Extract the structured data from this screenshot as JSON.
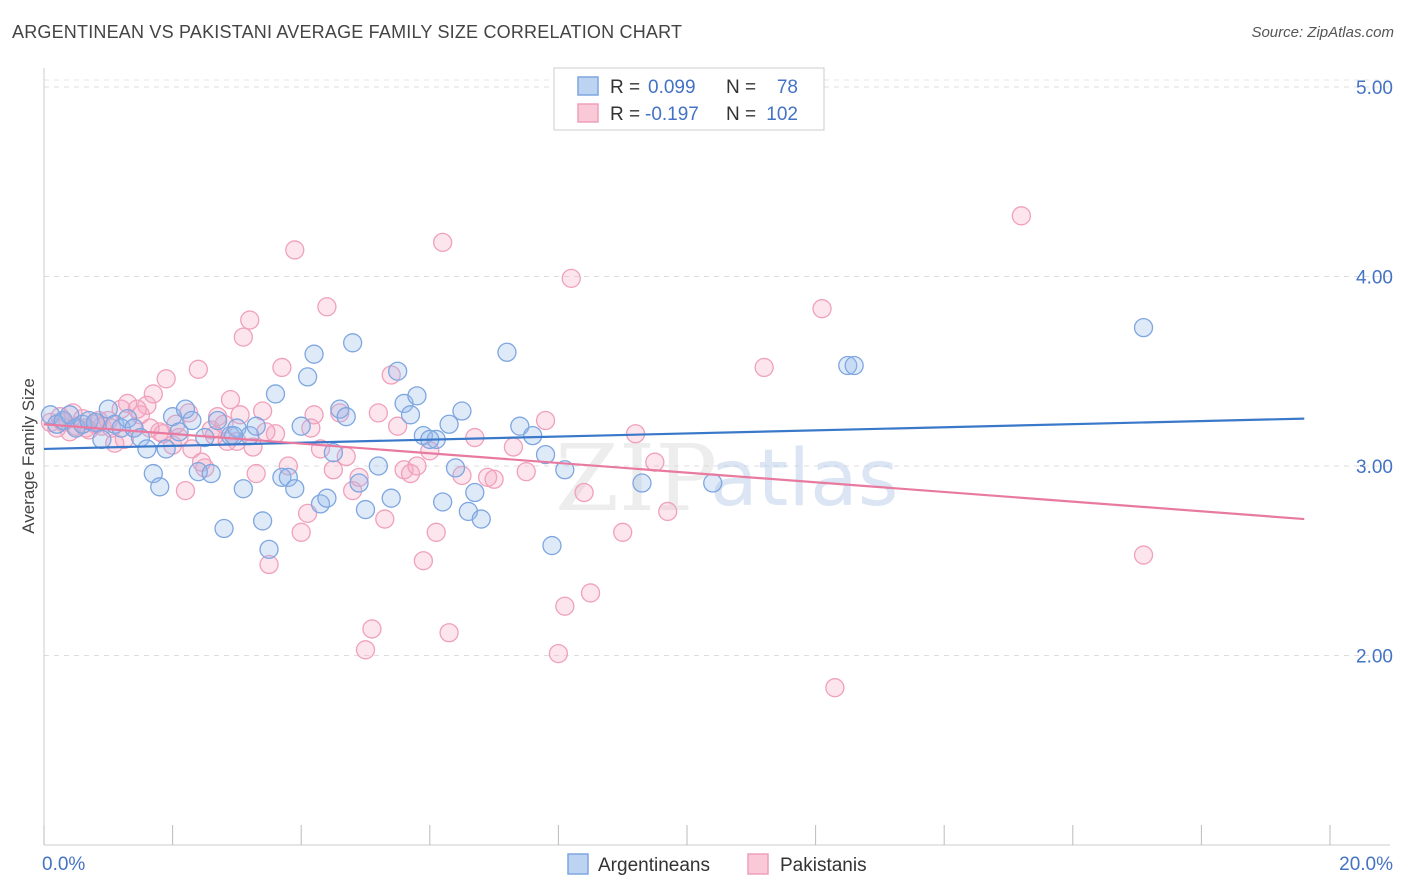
{
  "header": {
    "title": "ARGENTINEAN VS PAKISTANI AVERAGE FAMILY SIZE CORRELATION CHART",
    "source": "Source: ZipAtlas.com"
  },
  "legend": {
    "rows": [
      {
        "r_label": "R =",
        "r_value": "0.099",
        "n_label": "N =",
        "n_value": "78"
      },
      {
        "r_label": "R =",
        "r_value": "-0.197",
        "n_label": "N =",
        "n_value": "102"
      }
    ]
  },
  "watermark": {
    "zip": "ZIP",
    "atlas": "atlas"
  },
  "colors": {
    "argentineans": "#7ea6e0",
    "pakistanis": "#f0a0bc",
    "blue_line": "#3a78c9",
    "pink_line": "#e87aa0"
  },
  "chart_data": {
    "type": "scatter",
    "title": "ARGENTINEAN VS PAKISTANI AVERAGE FAMILY SIZE CORRELATION CHART",
    "ylabel": "Average Family Size",
    "xlabel": "",
    "xlim": [
      0,
      20
    ],
    "ylim": [
      1.0,
      5.1
    ],
    "x_tick_labels": [
      "0.0%",
      "20.0%"
    ],
    "y_ticks": [
      2.0,
      3.0,
      4.0,
      5.0
    ],
    "y_tick_labels": [
      "2.00",
      "3.00",
      "4.00",
      "5.00"
    ],
    "grid": true,
    "legend_position": "top-center",
    "series": [
      {
        "name": "Argentineans",
        "trend": {
          "x": [
            0,
            19.6
          ],
          "y": [
            3.09,
            3.25
          ]
        },
        "points": [
          [
            0.1,
            3.27
          ],
          [
            0.2,
            3.22
          ],
          [
            0.3,
            3.24
          ],
          [
            0.4,
            3.27
          ],
          [
            0.5,
            3.2
          ],
          [
            0.6,
            3.22
          ],
          [
            0.7,
            3.24
          ],
          [
            0.8,
            3.23
          ],
          [
            0.9,
            3.14
          ],
          [
            1.0,
            3.3
          ],
          [
            1.1,
            3.22
          ],
          [
            1.2,
            3.2
          ],
          [
            1.3,
            3.25
          ],
          [
            1.4,
            3.2
          ],
          [
            1.5,
            3.15
          ],
          [
            1.6,
            3.09
          ],
          [
            1.7,
            2.96
          ],
          [
            1.8,
            2.89
          ],
          [
            1.9,
            3.09
          ],
          [
            2.0,
            3.26
          ],
          [
            2.1,
            3.18
          ],
          [
            2.2,
            3.3
          ],
          [
            2.3,
            3.24
          ],
          [
            2.4,
            2.97
          ],
          [
            2.5,
            3.15
          ],
          [
            2.6,
            2.96
          ],
          [
            2.7,
            3.24
          ],
          [
            2.8,
            2.67
          ],
          [
            2.9,
            3.16
          ],
          [
            3.0,
            3.2
          ],
          [
            3.1,
            2.88
          ],
          [
            3.2,
            3.16
          ],
          [
            3.3,
            3.21
          ],
          [
            3.4,
            2.71
          ],
          [
            3.5,
            2.56
          ],
          [
            3.6,
            3.38
          ],
          [
            3.7,
            2.94
          ],
          [
            3.8,
            2.94
          ],
          [
            3.9,
            2.88
          ],
          [
            4.0,
            3.21
          ],
          [
            4.1,
            3.47
          ],
          [
            4.2,
            3.59
          ],
          [
            4.3,
            2.8
          ],
          [
            4.4,
            2.83
          ],
          [
            4.5,
            3.07
          ],
          [
            4.6,
            3.3
          ],
          [
            4.7,
            3.26
          ],
          [
            4.8,
            3.65
          ],
          [
            4.9,
            2.91
          ],
          [
            5.0,
            2.77
          ],
          [
            5.2,
            3.0
          ],
          [
            5.4,
            2.83
          ],
          [
            5.5,
            3.5
          ],
          [
            5.6,
            3.33
          ],
          [
            5.7,
            3.27
          ],
          [
            5.8,
            3.37
          ],
          [
            5.9,
            3.16
          ],
          [
            6.1,
            3.14
          ],
          [
            6.2,
            2.81
          ],
          [
            6.3,
            3.22
          ],
          [
            6.4,
            2.99
          ],
          [
            6.5,
            3.29
          ],
          [
            6.6,
            2.76
          ],
          [
            6.7,
            2.86
          ],
          [
            6.8,
            2.72
          ],
          [
            7.2,
            3.6
          ],
          [
            7.4,
            3.21
          ],
          [
            7.6,
            3.16
          ],
          [
            7.8,
            3.06
          ],
          [
            7.9,
            2.58
          ],
          [
            8.1,
            2.98
          ],
          [
            9.3,
            2.91
          ],
          [
            10.4,
            2.91
          ],
          [
            12.5,
            3.53
          ],
          [
            12.6,
            3.53
          ],
          [
            17.1,
            3.73
          ],
          [
            6.0,
            3.14
          ],
          [
            2.95,
            3.16
          ]
        ]
      },
      {
        "name": "Pakistanis",
        "trend": {
          "x": [
            0,
            19.6
          ],
          "y": [
            3.22,
            2.72
          ]
        },
        "points": [
          [
            0.1,
            3.23
          ],
          [
            0.2,
            3.2
          ],
          [
            0.3,
            3.23
          ],
          [
            0.4,
            3.18
          ],
          [
            0.5,
            3.21
          ],
          [
            0.6,
            3.25
          ],
          [
            0.7,
            3.19
          ],
          [
            0.8,
            3.22
          ],
          [
            0.9,
            3.21
          ],
          [
            1.0,
            3.24
          ],
          [
            1.1,
            3.12
          ],
          [
            1.2,
            3.3
          ],
          [
            1.3,
            3.33
          ],
          [
            1.4,
            3.2
          ],
          [
            1.5,
            3.27
          ],
          [
            1.6,
            3.32
          ],
          [
            1.7,
            3.38
          ],
          [
            1.8,
            3.18
          ],
          [
            1.9,
            3.46
          ],
          [
            2.0,
            3.11
          ],
          [
            2.1,
            3.15
          ],
          [
            2.2,
            2.87
          ],
          [
            2.3,
            3.09
          ],
          [
            2.4,
            3.51
          ],
          [
            2.5,
            2.99
          ],
          [
            2.6,
            3.19
          ],
          [
            2.7,
            3.26
          ],
          [
            2.8,
            3.22
          ],
          [
            2.9,
            3.35
          ],
          [
            3.0,
            3.13
          ],
          [
            3.1,
            3.68
          ],
          [
            3.2,
            3.77
          ],
          [
            3.3,
            2.96
          ],
          [
            3.4,
            3.29
          ],
          [
            3.5,
            2.48
          ],
          [
            3.6,
            3.17
          ],
          [
            3.7,
            3.52
          ],
          [
            3.8,
            3.0
          ],
          [
            3.9,
            4.14
          ],
          [
            4.0,
            2.65
          ],
          [
            4.1,
            2.75
          ],
          [
            4.2,
            3.27
          ],
          [
            4.3,
            3.09
          ],
          [
            4.4,
            3.84
          ],
          [
            4.5,
            2.98
          ],
          [
            4.6,
            3.28
          ],
          [
            4.7,
            3.05
          ],
          [
            4.8,
            2.87
          ],
          [
            4.9,
            2.94
          ],
          [
            5.0,
            2.03
          ],
          [
            5.1,
            2.14
          ],
          [
            5.2,
            3.28
          ],
          [
            5.3,
            2.72
          ],
          [
            5.4,
            3.48
          ],
          [
            5.5,
            3.21
          ],
          [
            5.6,
            2.98
          ],
          [
            5.7,
            2.96
          ],
          [
            5.8,
            3.0
          ],
          [
            5.9,
            2.5
          ],
          [
            6.0,
            3.08
          ],
          [
            6.1,
            2.65
          ],
          [
            6.2,
            4.18
          ],
          [
            6.3,
            2.12
          ],
          [
            6.5,
            2.95
          ],
          [
            6.7,
            3.15
          ],
          [
            6.9,
            2.94
          ],
          [
            7.0,
            2.93
          ],
          [
            7.3,
            3.1
          ],
          [
            7.5,
            2.97
          ],
          [
            7.8,
            3.24
          ],
          [
            8.0,
            2.01
          ],
          [
            8.1,
            2.26
          ],
          [
            8.2,
            3.99
          ],
          [
            8.4,
            2.86
          ],
          [
            8.5,
            2.33
          ],
          [
            9.0,
            2.65
          ],
          [
            9.2,
            3.17
          ],
          [
            9.5,
            3.02
          ],
          [
            9.7,
            2.76
          ],
          [
            11.2,
            3.52
          ],
          [
            12.1,
            3.83
          ],
          [
            12.3,
            1.83
          ],
          [
            15.2,
            4.32
          ],
          [
            17.1,
            2.53
          ],
          [
            0.25,
            3.26
          ],
          [
            0.45,
            3.28
          ],
          [
            0.65,
            3.2
          ],
          [
            0.85,
            3.24
          ],
          [
            1.05,
            3.2
          ],
          [
            1.25,
            3.14
          ],
          [
            1.45,
            3.3
          ],
          [
            1.65,
            3.2
          ],
          [
            1.85,
            3.17
          ],
          [
            2.05,
            3.22
          ],
          [
            2.25,
            3.28
          ],
          [
            2.45,
            3.02
          ],
          [
            2.65,
            3.16
          ],
          [
            2.85,
            3.13
          ],
          [
            3.05,
            3.27
          ],
          [
            3.25,
            3.1
          ],
          [
            3.45,
            3.18
          ],
          [
            4.15,
            3.2
          ]
        ]
      }
    ]
  },
  "bottom_legend": {
    "items": [
      "Argentineans",
      "Pakistanis"
    ]
  }
}
